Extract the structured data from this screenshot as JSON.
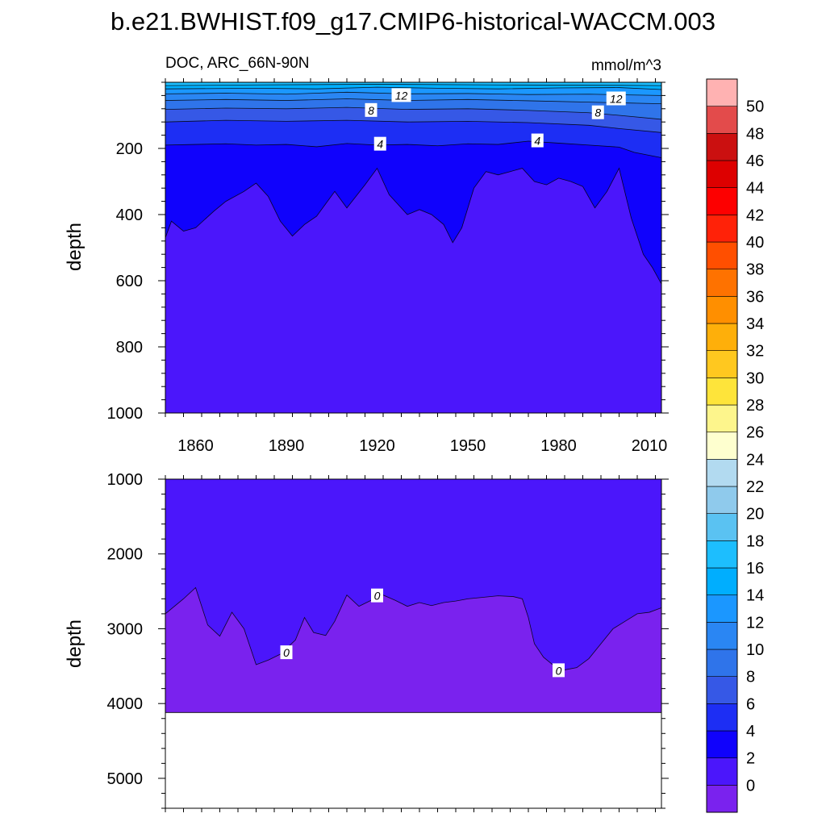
{
  "title": "b.e21.BWHIST.f09_g17.CMIP6-historical-WACCM.003",
  "chart_data": {
    "type": "contour",
    "variable_label": "DOC, ARC_66N-90N",
    "units": "mmol/m^3",
    "x_tick_labels": [
      "1860",
      "1890",
      "1920",
      "1950",
      "1980",
      "2010"
    ],
    "x_ticks": [
      1860,
      1890,
      1920,
      1950,
      1980,
      2010
    ],
    "xlim": [
      1850,
      2014
    ],
    "colorbar": {
      "levels": [
        0,
        2,
        4,
        6,
        8,
        10,
        12,
        14,
        16,
        18,
        20,
        22,
        24,
        26,
        28,
        30,
        32,
        34,
        36,
        38,
        40,
        42,
        44,
        46,
        48,
        50
      ],
      "level_labels": [
        "0",
        "2",
        "4",
        "6",
        "8",
        "10",
        "12",
        "14",
        "16",
        "18",
        "20",
        "22",
        "24",
        "26",
        "28",
        "30",
        "32",
        "34",
        "36",
        "38",
        "40",
        "42",
        "44",
        "46",
        "48",
        "50"
      ],
      "colors": [
        "#7a22ee",
        "#4b16fb",
        "#1002fc",
        "#1d2ef4",
        "#3658e6",
        "#2f74ea",
        "#2a86f3",
        "#1b97ff",
        "#00aefe",
        "#1dbefe",
        "#5ac2f2",
        "#8fcaec",
        "#b2daf0",
        "#feffcf",
        "#fdf58c",
        "#fee43a",
        "#ffc81f",
        "#feaf0a",
        "#ff8f00",
        "#fe7200",
        "#ff4f00",
        "#ff2208",
        "#fd0000",
        "#dd0000",
        "#cb1010",
        "#e34b4b",
        "#ffb2b2"
      ]
    },
    "panels": [
      {
        "name": "upper",
        "ylabel": "depth",
        "ylim": [
          0,
          1000
        ],
        "y_ticks": [
          200,
          400,
          600,
          800,
          1000
        ],
        "y_tick_labels": [
          "200",
          "400",
          "600",
          "800",
          "1000"
        ],
        "contour_labels": [
          {
            "text": "12",
            "x": 1928,
            "y": 40
          },
          {
            "text": "12",
            "x": 1999,
            "y": 50
          },
          {
            "text": "8",
            "x": 1918,
            "y": 85
          },
          {
            "text": "8",
            "x": 1993,
            "y": 92
          },
          {
            "text": "4",
            "x": 1921,
            "y": 187
          },
          {
            "text": "4",
            "x": 1973,
            "y": 177
          }
        ],
        "contour_lines": [
          {
            "level": 16,
            "x": [
              1850,
              1880,
              1920,
              1960,
              2000,
              2014
            ],
            "depth": [
              10,
              8,
              6,
              8,
              9,
              10
            ]
          },
          {
            "level": 14,
            "x": [
              1850,
              1880,
              1900,
              1920,
              1940,
              1960,
              1980,
              2000,
              2014
            ],
            "depth": [
              20,
              18,
              20,
              15,
              18,
              20,
              17,
              16,
              22
            ]
          },
          {
            "level": 12,
            "x": [
              1850,
              1870,
              1890,
              1910,
              1930,
              1950,
              1970,
              1990,
              2014
            ],
            "depth": [
              35,
              33,
              36,
              30,
              35,
              34,
              37,
              36,
              40
            ]
          },
          {
            "level": 10,
            "x": [
              1850,
              1870,
              1890,
              1910,
              1930,
              1950,
              1970,
              1990,
              2014
            ],
            "depth": [
              55,
              52,
              55,
              50,
              55,
              52,
              56,
              60,
              65
            ]
          },
          {
            "level": 8,
            "x": [
              1850,
              1870,
              1890,
              1910,
              1930,
              1950,
              1970,
              1990,
              2000,
              2014
            ],
            "depth": [
              82,
              78,
              80,
              76,
              82,
              80,
              85,
              92,
              100,
              112
            ]
          },
          {
            "level": 6,
            "x": [
              1850,
              1870,
              1890,
              1910,
              1930,
              1950,
              1970,
              1990,
              2000,
              2014
            ],
            "depth": [
              120,
              115,
              118,
              115,
              120,
              118,
              122,
              130,
              140,
              152
            ]
          },
          {
            "level": 4,
            "x": [
              1850,
              1860,
              1870,
              1880,
              1890,
              1900,
              1910,
              1920,
              1930,
              1940,
              1950,
              1960,
              1970,
              1980,
              1990,
              2000,
              2005,
              2014
            ],
            "depth": [
              190,
              188,
              186,
              190,
              188,
              195,
              185,
              190,
              188,
              192,
              186,
              188,
              178,
              184,
              190,
              196,
              212,
              228
            ]
          },
          {
            "level": 2,
            "x": [
              1850,
              1852,
              1856,
              1860,
              1866,
              1870,
              1876,
              1880,
              1884,
              1888,
              1892,
              1896,
              1900,
              1906,
              1910,
              1916,
              1920,
              1924,
              1930,
              1934,
              1938,
              1942,
              1945,
              1948,
              1952,
              1956,
              1960,
              1964,
              1968,
              1972,
              1976,
              1980,
              1984,
              1988,
              1992,
              1996,
              2000,
              2004,
              2008,
              2011,
              2014
            ],
            "depth": [
              470,
              420,
              450,
              440,
              390,
              360,
              330,
              305,
              345,
              420,
              465,
              430,
              405,
              330,
              380,
              310,
              260,
              340,
              400,
              385,
              400,
              430,
              485,
              440,
              320,
              270,
              280,
              270,
              260,
              300,
              310,
              290,
              300,
              315,
              380,
              330,
              260,
              410,
              520,
              560,
              610
            ]
          }
        ]
      },
      {
        "name": "lower",
        "ylabel": "depth",
        "ylim": [
          1000,
          5400
        ],
        "y_ticks": [
          1000,
          2000,
          3000,
          4000,
          5000
        ],
        "y_tick_labels": [
          "1000",
          "2000",
          "3000",
          "4000",
          "5000"
        ],
        "ocean_floor_depth": 4120,
        "contour_labels": [
          {
            "text": "0",
            "x": 1920,
            "y": 2560
          },
          {
            "text": "0",
            "x": 1890,
            "y": 3320
          },
          {
            "text": "0",
            "x": 1980,
            "y": 3560
          }
        ],
        "contour_lines": [
          {
            "level": 0,
            "x": [
              1850,
              1856,
              1860,
              1864,
              1868,
              1872,
              1876,
              1880,
              1884,
              1888,
              1893,
              1896,
              1899,
              1903,
              1906,
              1910,
              1914,
              1918,
              1922,
              1926,
              1930,
              1934,
              1938,
              1942,
              1946,
              1950,
              1955,
              1960,
              1965,
              1968,
              1970,
              1972,
              1975,
              1978,
              1982,
              1986,
              1990,
              1994,
              1998,
              2002,
              2006,
              2010,
              2014
            ],
            "depth": [
              2800,
              2600,
              2450,
              2950,
              3100,
              2780,
              3000,
              3480,
              3420,
              3340,
              3150,
              2850,
              3050,
              3090,
              2900,
              2550,
              2700,
              2620,
              2550,
              2620,
              2700,
              2650,
              2690,
              2650,
              2630,
              2600,
              2580,
              2560,
              2570,
              2600,
              2850,
              3200,
              3380,
              3480,
              3550,
              3520,
              3400,
              3200,
              3000,
              2900,
              2800,
              2780,
              2720
            ]
          }
        ]
      }
    ]
  }
}
